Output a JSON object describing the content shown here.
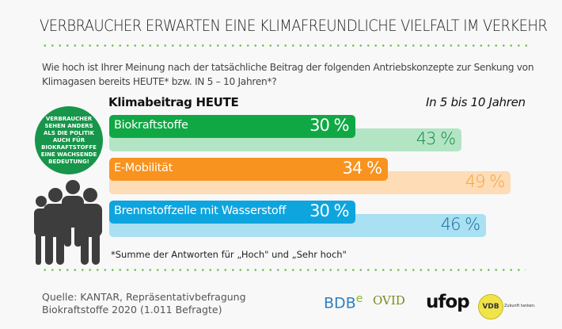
{
  "title": "VERBRAUCHER ERWARTEN EINE KLIMAFREUNDLICHE VIELFALT IM VERKEHR",
  "question": "Wie hoch ist Ihrer Meinung nach der tatsächliche Beitrag der folgenden Antriebskonzepte zur Senkung von Klimagasen bereits HEUTE* bzw. IN 5 – 10 Jahren*?",
  "badge_text": "VERBRAUCHER SEHEN ANDERS ALS DIE POLITIK AUCH FÜR BIOKRAFTSTOFFE EINE WACHSENDE BEDEUTUNG!",
  "footnote": "*Summe der Antworten für „Hoch\" und „Sehr hoch\"",
  "source_line1": "Quelle: KANTAR, Repräsentativbefragung",
  "source_line2": "Biokraftstoffe 2020 (1.011 Befragte)",
  "logos": {
    "bdb": "BDB",
    "bdb_sup": "e",
    "ovid": "OVID",
    "ufop": "ufop",
    "vdb": "VDB",
    "vdb_claim": "Zukunft tanken."
  },
  "chart_data": {
    "type": "bar",
    "orientation": "horizontal",
    "unit": "%",
    "categories": [
      "Biokraftstoffe",
      "E-Mobilität",
      "Brennstoffzelle mit Wasserstoff"
    ],
    "series": [
      {
        "name": "Klimabeitrag HEUTE",
        "values": [
          30,
          34,
          30
        ]
      },
      {
        "name": "In 5 bis 10 Jahren",
        "values": [
          43,
          49,
          46
        ]
      }
    ],
    "value_labels_today": [
      "30 %",
      "34 %",
      "30 %"
    ],
    "value_labels_future": [
      "43 %",
      "49 %",
      "46 %"
    ],
    "colors": {
      "today": [
        "#10a844",
        "#f7931e",
        "#0ea5df"
      ],
      "future": [
        "#b3e5c5",
        "#fddcb6",
        "#a9e0f2"
      ],
      "future_text": [
        "#138a45",
        "#f7a23c",
        "#1b6b9c"
      ]
    }
  }
}
